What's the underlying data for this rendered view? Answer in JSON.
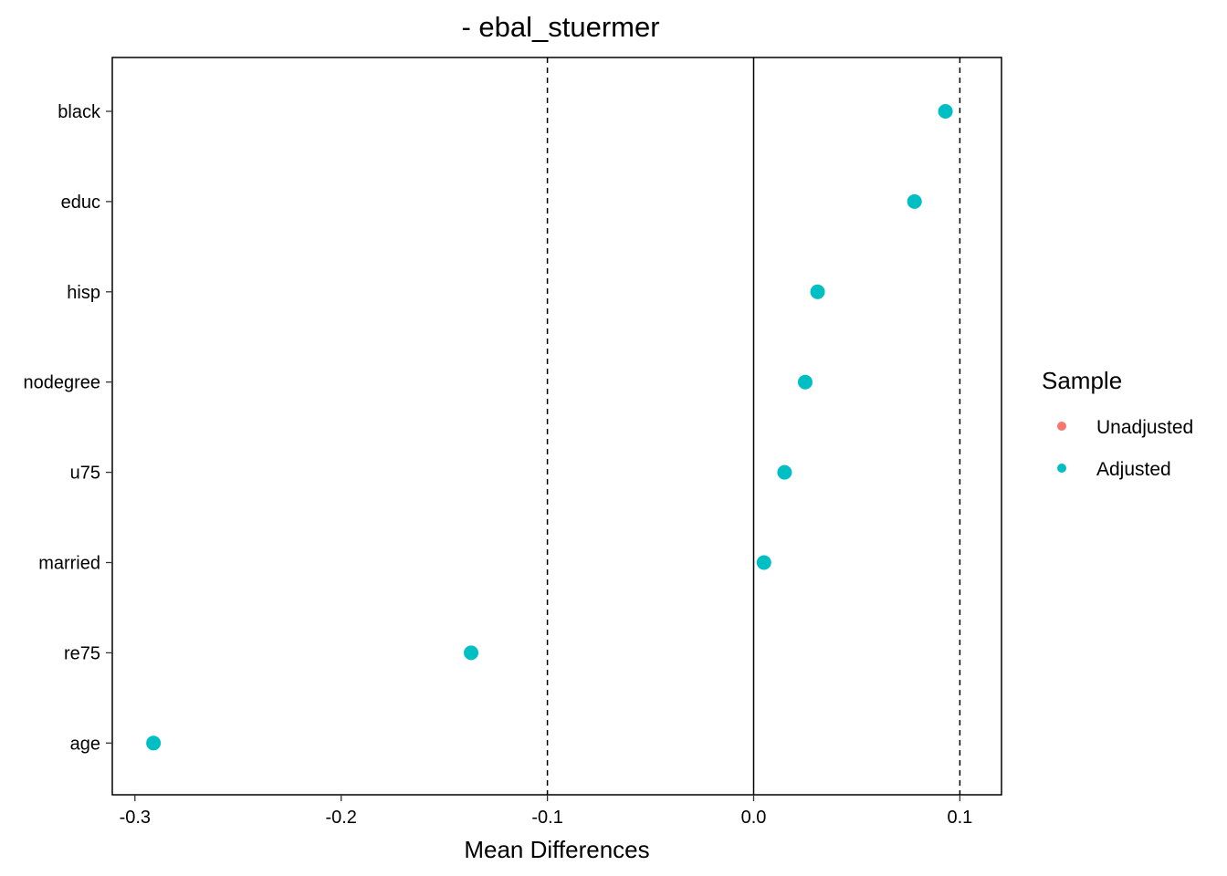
{
  "chart_data": {
    "type": "scatter",
    "title": "- ebal_stuermer",
    "xlabel": "Mean Differences",
    "ylabel": "",
    "xlim": [
      -0.31,
      0.12
    ],
    "x_ticks": [
      -0.3,
      -0.2,
      -0.1,
      0.0,
      0.1
    ],
    "x_tick_labels": [
      "-0.3",
      "-0.2",
      "-0.1",
      "0.0",
      "0.1"
    ],
    "categories": [
      "black",
      "educ",
      "hisp",
      "nodegree",
      "u75",
      "married",
      "re75",
      "age"
    ],
    "series": [
      {
        "name": "Unadjusted",
        "color": "#F8766D",
        "values": []
      },
      {
        "name": "Adjusted",
        "color": "#00BFC4",
        "values": [
          0.093,
          0.078,
          0.031,
          0.025,
          0.015,
          0.005,
          -0.137,
          -0.291
        ]
      }
    ],
    "reference_lines": {
      "solid": [
        0.0
      ],
      "dashed": [
        -0.1,
        0.1
      ]
    },
    "legend": {
      "title": "Sample",
      "position": "right",
      "entries": [
        {
          "label": "Unadjusted",
          "color": "#F8766D"
        },
        {
          "label": "Adjusted",
          "color": "#00BFC4"
        }
      ]
    },
    "grid": false
  }
}
